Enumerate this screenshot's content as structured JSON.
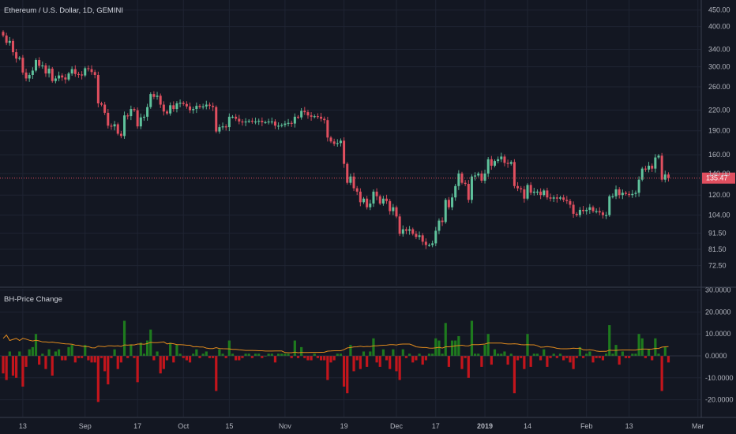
{
  "colors": {
    "background": "#131722",
    "grid": "#1f2433",
    "separator": "#3a3f4e",
    "bull": "#5fc29c",
    "bear": "#e04f5f",
    "wick": "#8a8d98",
    "hist_up": "#1e7a1e",
    "hist_down": "#c3151c",
    "average": "#e08a1e",
    "price_line": "#e04f5f",
    "text": "#b2b5be"
  },
  "chart_data": [
    {
      "type": "candlestick",
      "title": "Ethereum / U.S. Dollar, 1D, GEMINI",
      "scale": "log",
      "ylim": [
        68,
        470
      ],
      "y_ticks": [
        "450.00",
        "400.00",
        "340.00",
        "300.00",
        "260.00",
        "220.00",
        "190.00",
        "160.00",
        "140.00",
        "120.00",
        "104.00",
        "91.50",
        "81.50",
        "72.50"
      ],
      "last_price": "135.47",
      "series": [
        {
          "x": "Aug 7",
          "close": 375
        },
        {
          "x": "Aug 8",
          "close": 356
        },
        {
          "x": "Aug 9",
          "close": 361
        },
        {
          "x": "Aug 10",
          "close": 333
        },
        {
          "x": "Aug 11",
          "close": 318
        },
        {
          "x": "Aug 12",
          "close": 320
        },
        {
          "x": "Aug 13",
          "close": 288
        },
        {
          "x": "Aug 14",
          "close": 276
        },
        {
          "x": "Aug 15",
          "close": 283
        },
        {
          "x": "Aug 16",
          "close": 292
        },
        {
          "x": "Aug 17",
          "close": 315
        },
        {
          "x": "Aug 18",
          "close": 302
        },
        {
          "x": "Aug 19",
          "close": 303
        },
        {
          "x": "Aug 20",
          "close": 286
        },
        {
          "x": "Aug 21",
          "close": 296
        },
        {
          "x": "Aug 22",
          "close": 271
        },
        {
          "x": "Aug 23",
          "close": 276
        },
        {
          "x": "Aug 24",
          "close": 282
        },
        {
          "x": "Aug 25",
          "close": 278
        },
        {
          "x": "Aug 26",
          "close": 274
        },
        {
          "x": "Aug 27",
          "close": 286
        },
        {
          "x": "Aug 28",
          "close": 295
        },
        {
          "x": "Aug 29",
          "close": 285
        },
        {
          "x": "Aug 30",
          "close": 284
        },
        {
          "x": "Aug 31",
          "close": 282
        },
        {
          "x": "Sep 1",
          "close": 297
        },
        {
          "x": "Sep 2",
          "close": 295
        },
        {
          "x": "Sep 3",
          "close": 289
        },
        {
          "x": "Sep 4",
          "close": 283
        },
        {
          "x": "Sep 5",
          "close": 231
        },
        {
          "x": "Sep 6",
          "close": 229
        },
        {
          "x": "Sep 7",
          "close": 216
        },
        {
          "x": "Sep 8",
          "close": 197
        },
        {
          "x": "Sep 9",
          "close": 196
        },
        {
          "x": "Sep 10",
          "close": 199
        },
        {
          "x": "Sep 11",
          "close": 186
        },
        {
          "x": "Sep 12",
          "close": 183
        },
        {
          "x": "Sep 13",
          "close": 212
        },
        {
          "x": "Sep 14",
          "close": 211
        },
        {
          "x": "Sep 15",
          "close": 222
        },
        {
          "x": "Sep 16",
          "close": 220
        },
        {
          "x": "Sep 17",
          "close": 196
        },
        {
          "x": "Sep 18",
          "close": 209
        },
        {
          "x": "Sep 19",
          "close": 210
        },
        {
          "x": "Sep 20",
          "close": 225
        },
        {
          "x": "Sep 21",
          "close": 247
        },
        {
          "x": "Sep 22",
          "close": 242
        },
        {
          "x": "Sep 23",
          "close": 244
        },
        {
          "x": "Sep 24",
          "close": 229
        },
        {
          "x": "Sep 25",
          "close": 218
        },
        {
          "x": "Sep 26",
          "close": 215
        },
        {
          "x": "Sep 27",
          "close": 228
        },
        {
          "x": "Sep 28",
          "close": 222
        },
        {
          "x": "Sep 29",
          "close": 231
        },
        {
          "x": "Sep 30",
          "close": 232
        },
        {
          "x": "Oct 1",
          "close": 230
        },
        {
          "x": "Oct 2",
          "close": 226
        },
        {
          "x": "Oct 3",
          "close": 220
        },
        {
          "x": "Oct 4",
          "close": 222
        },
        {
          "x": "Oct 5",
          "close": 227
        },
        {
          "x": "Oct 6",
          "close": 225
        },
        {
          "x": "Oct 7",
          "close": 226
        },
        {
          "x": "Oct 8",
          "close": 229
        },
        {
          "x": "Oct 9",
          "close": 227
        },
        {
          "x": "Oct 10",
          "close": 225
        },
        {
          "x": "Oct 11",
          "close": 189
        },
        {
          "x": "Oct 12",
          "close": 195
        },
        {
          "x": "Oct 13",
          "close": 196
        },
        {
          "x": "Oct 14",
          "close": 195
        },
        {
          "x": "Oct 15",
          "close": 210
        },
        {
          "x": "Oct 16",
          "close": 210
        },
        {
          "x": "Oct 17",
          "close": 207
        },
        {
          "x": "Oct 18",
          "close": 203
        },
        {
          "x": "Oct 19",
          "close": 202
        },
        {
          "x": "Oct 20",
          "close": 203
        },
        {
          "x": "Oct 21",
          "close": 204
        },
        {
          "x": "Oct 22",
          "close": 203
        },
        {
          "x": "Oct 23",
          "close": 203
        },
        {
          "x": "Oct 24",
          "close": 204
        },
        {
          "x": "Oct 25",
          "close": 202
        },
        {
          "x": "Oct 26",
          "close": 202
        },
        {
          "x": "Oct 27",
          "close": 203
        },
        {
          "x": "Oct 28",
          "close": 203
        },
        {
          "x": "Oct 29",
          "close": 197
        },
        {
          "x": "Oct 30",
          "close": 197
        },
        {
          "x": "Oct 31",
          "close": 198
        },
        {
          "x": "Nov 1",
          "close": 200
        },
        {
          "x": "Nov 2",
          "close": 201
        },
        {
          "x": "Nov 3",
          "close": 200
        },
        {
          "x": "Nov 4",
          "close": 210
        },
        {
          "x": "Nov 5",
          "close": 209
        },
        {
          "x": "Nov 6",
          "close": 219
        },
        {
          "x": "Nov 7",
          "close": 217
        },
        {
          "x": "Nov 8",
          "close": 212
        },
        {
          "x": "Nov 9",
          "close": 210
        },
        {
          "x": "Nov 10",
          "close": 211
        },
        {
          "x": "Nov 11",
          "close": 210
        },
        {
          "x": "Nov 12",
          "close": 207
        },
        {
          "x": "Nov 13",
          "close": 205
        },
        {
          "x": "Nov 14",
          "close": 181
        },
        {
          "x": "Nov 15",
          "close": 176
        },
        {
          "x": "Nov 16",
          "close": 173
        },
        {
          "x": "Nov 17",
          "close": 174
        },
        {
          "x": "Nov 18",
          "close": 177
        },
        {
          "x": "Nov 19",
          "close": 150
        },
        {
          "x": "Nov 20",
          "close": 131
        },
        {
          "x": "Nov 21",
          "close": 137
        },
        {
          "x": "Nov 22",
          "close": 126
        },
        {
          "x": "Nov 23",
          "close": 123
        },
        {
          "x": "Nov 24",
          "close": 114
        },
        {
          "x": "Nov 25",
          "close": 117
        },
        {
          "x": "Nov 26",
          "close": 110
        },
        {
          "x": "Nov 27",
          "close": 113
        },
        {
          "x": "Nov 28",
          "close": 123
        },
        {
          "x": "Nov 29",
          "close": 119
        },
        {
          "x": "Nov 30",
          "close": 113
        },
        {
          "x": "Dec 1",
          "close": 117
        },
        {
          "x": "Dec 2",
          "close": 115
        },
        {
          "x": "Dec 3",
          "close": 107
        },
        {
          "x": "Dec 4",
          "close": 110
        },
        {
          "x": "Dec 5",
          "close": 103
        },
        {
          "x": "Dec 6",
          "close": 91
        },
        {
          "x": "Dec 7",
          "close": 94
        },
        {
          "x": "Dec 8",
          "close": 93
        },
        {
          "x": "Dec 9",
          "close": 94
        },
        {
          "x": "Dec 10",
          "close": 91
        },
        {
          "x": "Dec 11",
          "close": 89
        },
        {
          "x": "Dec 12",
          "close": 90
        },
        {
          "x": "Dec 13",
          "close": 86
        },
        {
          "x": "Dec 14",
          "close": 84
        },
        {
          "x": "Dec 15",
          "close": 84
        },
        {
          "x": "Dec 16",
          "close": 85
        },
        {
          "x": "Dec 17",
          "close": 93
        },
        {
          "x": "Dec 18",
          "close": 100
        },
        {
          "x": "Dec 19",
          "close": 99
        },
        {
          "x": "Dec 20",
          "close": 116
        },
        {
          "x": "Dec 21",
          "close": 110
        },
        {
          "x": "Dec 22",
          "close": 118
        },
        {
          "x": "Dec 23",
          "close": 128
        },
        {
          "x": "Dec 24",
          "close": 140
        },
        {
          "x": "Dec 25",
          "close": 131
        },
        {
          "x": "Dec 26",
          "close": 130
        },
        {
          "x": "Dec 27",
          "close": 116
        },
        {
          "x": "Dec 28",
          "close": 137
        },
        {
          "x": "Dec 29",
          "close": 138
        },
        {
          "x": "Dec 30",
          "close": 140
        },
        {
          "x": "Dec 31",
          "close": 133
        },
        {
          "x": "Jan 1",
          "close": 140
        },
        {
          "x": "Jan 2",
          "close": 155
        },
        {
          "x": "Jan 3",
          "close": 148
        },
        {
          "x": "Jan 4",
          "close": 153
        },
        {
          "x": "Jan 5",
          "close": 155
        },
        {
          "x": "Jan 6",
          "close": 158
        },
        {
          "x": "Jan 7",
          "close": 151
        },
        {
          "x": "Jan 8",
          "close": 150
        },
        {
          "x": "Jan 9",
          "close": 152
        },
        {
          "x": "Jan 10",
          "close": 128
        },
        {
          "x": "Jan 11",
          "close": 126
        },
        {
          "x": "Jan 12",
          "close": 125
        },
        {
          "x": "Jan 13",
          "close": 117
        },
        {
          "x": "Jan 14",
          "close": 129
        },
        {
          "x": "Jan 15",
          "close": 122
        },
        {
          "x": "Jan 16",
          "close": 123
        },
        {
          "x": "Jan 17",
          "close": 123
        },
        {
          "x": "Jan 18",
          "close": 120
        },
        {
          "x": "Jan 19",
          "close": 124
        },
        {
          "x": "Jan 20",
          "close": 118
        },
        {
          "x": "Jan 21",
          "close": 117
        },
        {
          "x": "Jan 22",
          "close": 118
        },
        {
          "x": "Jan 23",
          "close": 117
        },
        {
          "x": "Jan 24",
          "close": 118
        },
        {
          "x": "Jan 25",
          "close": 116
        },
        {
          "x": "Jan 26",
          "close": 115
        },
        {
          "x": "Jan 27",
          "close": 112
        },
        {
          "x": "Jan 28",
          "close": 105
        },
        {
          "x": "Jan 29",
          "close": 104
        },
        {
          "x": "Jan 30",
          "close": 108
        },
        {
          "x": "Jan 31",
          "close": 107
        },
        {
          "x": "Feb 1",
          "close": 108
        },
        {
          "x": "Feb 2",
          "close": 110
        },
        {
          "x": "Feb 3",
          "close": 107
        },
        {
          "x": "Feb 4",
          "close": 107
        },
        {
          "x": "Feb 5",
          "close": 106
        },
        {
          "x": "Feb 6",
          "close": 104
        },
        {
          "x": "Feb 7",
          "close": 104
        },
        {
          "x": "Feb 8",
          "close": 119
        },
        {
          "x": "Feb 9",
          "close": 119
        },
        {
          "x": "Feb 10",
          "close": 125
        },
        {
          "x": "Feb 11",
          "close": 120
        },
        {
          "x": "Feb 12",
          "close": 122
        },
        {
          "x": "Feb 13",
          "close": 121
        },
        {
          "x": "Feb 14",
          "close": 120
        },
        {
          "x": "Feb 15",
          "close": 121
        },
        {
          "x": "Feb 16",
          "close": 122
        },
        {
          "x": "Feb 17",
          "close": 134
        },
        {
          "x": "Feb 18",
          "close": 145
        },
        {
          "x": "Feb 19",
          "close": 144
        },
        {
          "x": "Feb 20",
          "close": 148
        },
        {
          "x": "Feb 21",
          "close": 145
        },
        {
          "x": "Feb 22",
          "close": 157
        },
        {
          "x": "Feb 23",
          "close": 159
        },
        {
          "x": "Feb 24",
          "close": 134
        },
        {
          "x": "Feb 25",
          "close": 139
        },
        {
          "x": "Feb 26",
          "close": 135.47
        }
      ]
    },
    {
      "type": "bar",
      "title": "BH-Price Change",
      "ylim": [
        -30,
        30
      ],
      "y_ticks": [
        "30.0000",
        "20.0000",
        "10.0000",
        "0.0000",
        "-10.0000",
        "-20.0000"
      ],
      "values": [
        -8,
        -11,
        2,
        -9,
        -10,
        2,
        -14,
        -5,
        3,
        4,
        10,
        -4,
        1,
        -6,
        3,
        -9,
        2,
        3,
        -2,
        -2,
        4,
        5,
        -3,
        -1,
        -1,
        5,
        -2,
        -3,
        -3,
        -21,
        -1,
        -7,
        -13,
        -1,
        3,
        -6,
        -3,
        16,
        -1,
        5,
        -1,
        -12,
        6,
        1,
        7,
        12,
        -2,
        2,
        -8,
        -6,
        -2,
        6,
        -3,
        5,
        1,
        -1,
        -2,
        -3,
        1,
        3,
        -1,
        1,
        2,
        -1,
        -1,
        -16,
        3,
        1,
        -1,
        7,
        1,
        -2,
        -2,
        -1,
        1,
        1,
        -1,
        1,
        1,
        -1,
        0,
        1,
        1,
        -3,
        1,
        1,
        1,
        1,
        -1,
        7,
        -1,
        4,
        -1,
        -2,
        -2,
        1,
        -1,
        -2,
        -2,
        -11,
        -3,
        -2,
        1,
        1,
        -14,
        -17,
        5,
        -7,
        -2,
        -6,
        2,
        -5,
        2,
        8,
        -3,
        -5,
        3,
        -2,
        -6,
        3,
        -7,
        -11,
        3,
        -1,
        1,
        -3,
        -2,
        1,
        -4,
        -2,
        1,
        1,
        8,
        7,
        1,
        15,
        -5,
        7,
        7,
        9,
        -6,
        -1,
        -10,
        16,
        1,
        1,
        -5,
        5,
        10,
        -4,
        3,
        1,
        1,
        2,
        -4,
        1,
        -17,
        -2,
        -1,
        -6,
        10,
        -5,
        1,
        1,
        -2,
        3,
        -5,
        -1,
        1,
        -1,
        1,
        -2,
        -1,
        -3,
        -6,
        -1,
        4,
        -1,
        1,
        2,
        -3,
        -1,
        -1,
        -2,
        1,
        14,
        1,
        5,
        -4,
        2,
        -1,
        -1,
        1,
        1,
        10,
        8,
        -1,
        3,
        -2,
        8,
        1,
        -16,
        4,
        -3
      ]
    }
  ],
  "x_axis": {
    "labels": [
      "13",
      "Sep",
      "17",
      "Oct",
      "15",
      "Nov",
      "19",
      "Dec",
      "17",
      "2019",
      "14",
      "Feb",
      "13",
      "Mar"
    ]
  }
}
